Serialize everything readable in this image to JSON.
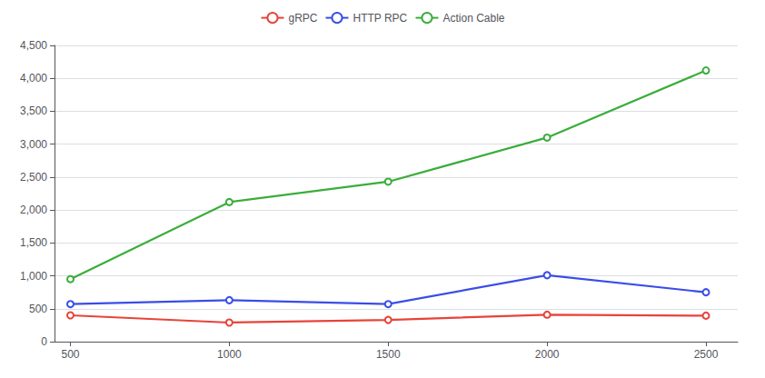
{
  "chart_data": {
    "type": "line",
    "x": [
      500,
      1000,
      1500,
      2000,
      2500
    ],
    "series": [
      {
        "name": "gRPC",
        "color": "#e8433a",
        "values": [
          400,
          290,
          330,
          410,
          395
        ]
      },
      {
        "name": "HTTP RPC",
        "color": "#3a4de8",
        "values": [
          570,
          630,
          570,
          1010,
          750
        ]
      },
      {
        "name": "Action Cable",
        "color": "#3aad3a",
        "values": [
          950,
          2120,
          2430,
          3100,
          4120
        ]
      }
    ],
    "xlim": [
      450,
      2600
    ],
    "xticks": [
      500,
      1000,
      1500,
      2000,
      2500
    ],
    "ylim": [
      0,
      4500
    ],
    "yticks": [
      0,
      500,
      {
        "value": 1000,
        "label": "1,000"
      },
      {
        "value": 1500,
        "label": "1,500"
      },
      {
        "value": 2000,
        "label": "2,000"
      },
      {
        "value": 2500,
        "label": "2,500"
      },
      {
        "value": 3000,
        "label": "3,000"
      },
      {
        "value": 3500,
        "label": "3,500"
      },
      {
        "value": 4000,
        "label": "4,000"
      },
      {
        "value": 4500,
        "label": "4,500"
      }
    ],
    "grid": true,
    "legend": "top",
    "marker": "circle"
  }
}
